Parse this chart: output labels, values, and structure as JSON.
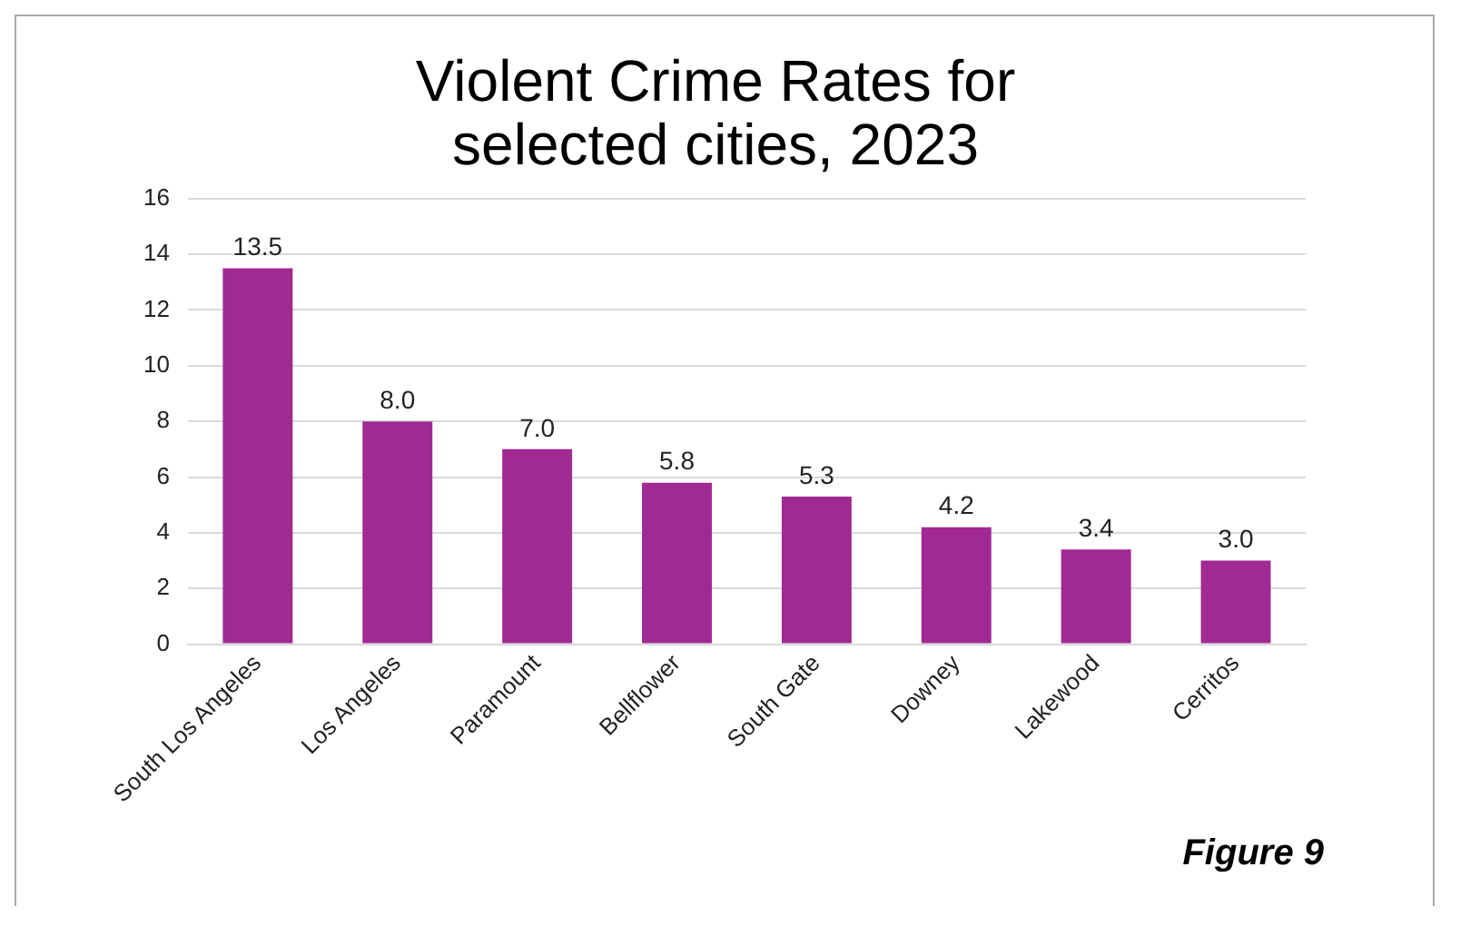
{
  "chart_data": {
    "type": "bar",
    "title": "Violent Crime Rates for\nselected cities, 2023",
    "categories": [
      "South Los Angeles",
      "Los Angeles",
      "Paramount",
      "Bellflower",
      "South Gate",
      "Downey",
      "Lakewood",
      "Cerritos"
    ],
    "values": [
      13.5,
      8.0,
      7.0,
      5.8,
      5.3,
      4.2,
      3.4,
      3.0
    ],
    "value_labels": [
      "13.5",
      "8.0",
      "7.0",
      "5.8",
      "5.3",
      "4.2",
      "3.4",
      "3.0"
    ],
    "color": "#a02a91",
    "ylim": [
      0,
      16
    ],
    "yticks": [
      0,
      2,
      4,
      6,
      8,
      10,
      12,
      14,
      16
    ],
    "grid": "y",
    "legend": false,
    "annotations": [
      "Figure 9"
    ]
  }
}
